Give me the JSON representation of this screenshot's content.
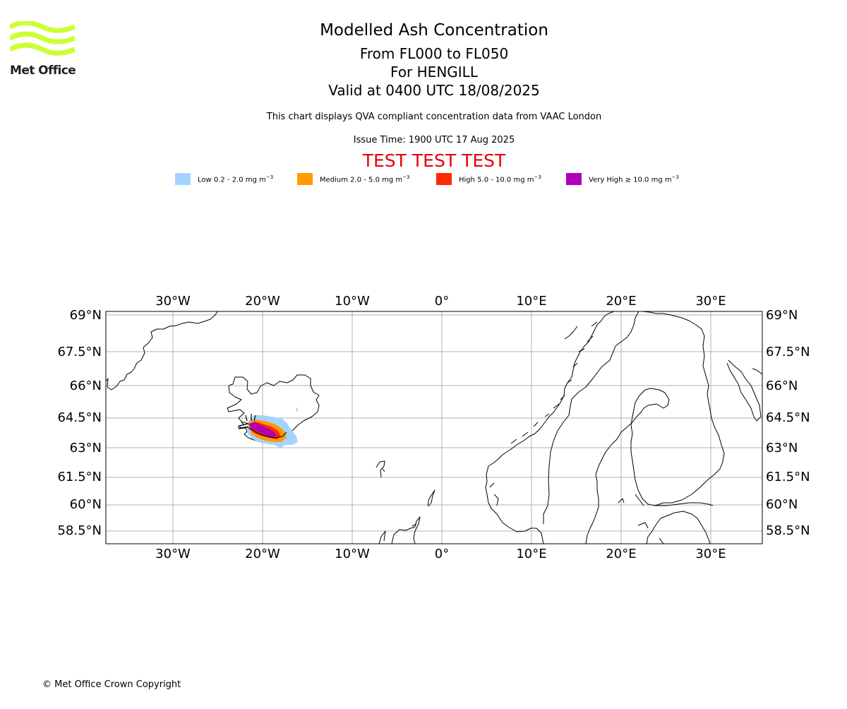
{
  "logo": {
    "text": "Met Office",
    "color": "#ccff33"
  },
  "title": "Modelled Ash Concentration",
  "levels": "From FL000 to FL050",
  "volcano": "For HENGILL",
  "valid": "Valid at 0400 UTC 18/08/2025",
  "description": "This chart displays QVA compliant concentration data from VAAC London",
  "issue_time": "Issue Time: 1900 UTC 17 Aug 2025",
  "test_banner": "TEST TEST TEST",
  "legend": [
    {
      "label": "Low 0.2 - 2.0 mg m",
      "color": "#a3d4ff"
    },
    {
      "label": "Medium 2.0 - 5.0 mg m",
      "color": "#ff9a00"
    },
    {
      "label": "High 5.0 - 10.0 mg m",
      "color": "#ff2a00"
    },
    {
      "label": "Very High  ≥  10.0 mg m",
      "color": "#b000b5"
    }
  ],
  "legend_unit_exp": "−3",
  "map": {
    "lon_range": [
      -37.5,
      36
    ],
    "lat_range": [
      57.7,
      69.2
    ],
    "lon_ticks": [
      "30°W",
      "20°W",
      "10°W",
      "0°",
      "10°E",
      "20°E",
      "30°E"
    ],
    "lat_ticks": [
      "69°N",
      "67.5°N",
      "66°N",
      "64.5°N",
      "63°N",
      "61.5°N",
      "60°N",
      "58.5°N"
    ],
    "ash_levels": [
      "low",
      "medium",
      "high",
      "very_high"
    ]
  },
  "copyright": "© Met Office Crown Copyright"
}
